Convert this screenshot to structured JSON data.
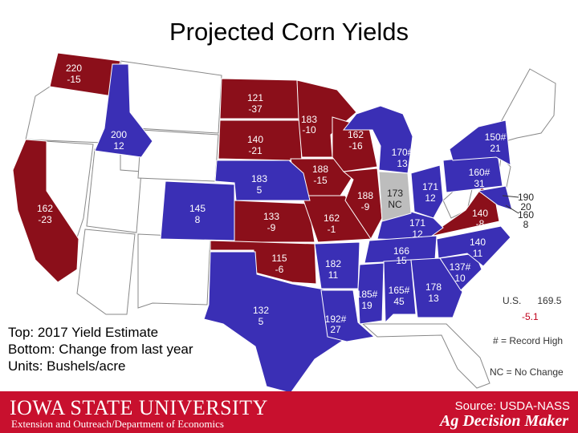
{
  "title": "Projected Corn Yields",
  "legend": {
    "line1": "Top: 2017 Yield Estimate",
    "line2": "Bottom: Change from last year",
    "line3": "Units: Bushels/acre"
  },
  "us_summary": {
    "label": "U.S.",
    "yield": "169.5",
    "change": "-5.1"
  },
  "record_note": "# = Record High",
  "nc_note": "NC = No Change",
  "footer": {
    "university": "IOWA STATE UNIVERSITY",
    "department": "Extension and Outreach/Department of Economics",
    "source": "Source: USDA-NASS",
    "brand": "Ag Decision Maker"
  },
  "colors": {
    "increase": "#3a2fb5",
    "decrease": "#8b0f1a",
    "no_change": "#bdbdbd",
    "no_data": "#ffffff",
    "footer": "#c8102e"
  },
  "states": {
    "wa": {
      "yield": "220",
      "change": "-15"
    },
    "id": {
      "yield": "200",
      "change": "12"
    },
    "ca": {
      "yield": "162",
      "change": "-23"
    },
    "co": {
      "yield": "145",
      "change": "8"
    },
    "nd": {
      "yield": "121",
      "change": "-37"
    },
    "sd": {
      "yield": "140",
      "change": "-21"
    },
    "ne": {
      "yield": "183",
      "change": "5"
    },
    "ks": {
      "yield": "133",
      "change": "-9"
    },
    "ok": {
      "yield": "115",
      "change": "-6"
    },
    "tx": {
      "yield": "132",
      "change": "5"
    },
    "mn": {
      "yield": "183",
      "change": "-10"
    },
    "ia": {
      "yield": "188",
      "change": "-15"
    },
    "mo": {
      "yield": "162",
      "change": "-1"
    },
    "ar": {
      "yield": "182",
      "change": "11"
    },
    "la": {
      "yield": "192#",
      "change": "27"
    },
    "wi": {
      "yield": "162",
      "change": "-16"
    },
    "il": {
      "yield": "188",
      "change": "-9"
    },
    "mi": {
      "yield": "170#",
      "change": "13"
    },
    "in": {
      "yield": "173",
      "change": "NC"
    },
    "oh": {
      "yield": "171",
      "change": "12"
    },
    "ky": {
      "yield": "171",
      "change": "12"
    },
    "tn": {
      "yield": "166",
      "change": "15"
    },
    "ms": {
      "yield": "185#",
      "change": "19"
    },
    "al": {
      "yield": "165#",
      "change": "45"
    },
    "ga": {
      "yield": "178",
      "change": "13"
    },
    "sc": {
      "yield": "137#",
      "change": "10"
    },
    "nc": {
      "yield": "140",
      "change": "11"
    },
    "va": {
      "yield": "140",
      "change": "-8"
    },
    "pa": {
      "yield": "160#",
      "change": "31"
    },
    "ny": {
      "yield": "150#",
      "change": "21"
    },
    "md": {
      "yield": "190",
      "change": "20"
    },
    "de": {
      "yield": "160",
      "change": "8"
    }
  }
}
